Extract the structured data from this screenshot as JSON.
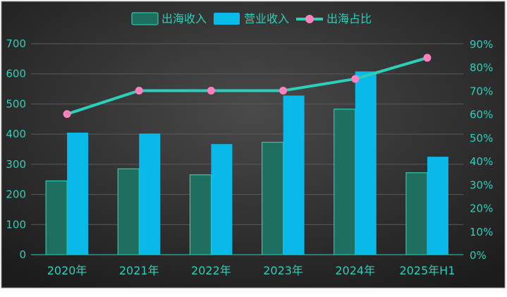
{
  "chart_data": {
    "type": "bar",
    "categories": [
      "2020年",
      "2021年",
      "2022年",
      "2023年",
      "2024年",
      "2025年H1"
    ],
    "series": [
      {
        "name": "出海收入",
        "type": "bar",
        "axis": "left",
        "values": [
          245,
          285,
          265,
          373,
          483,
          272
        ]
      },
      {
        "name": "营业收入",
        "type": "bar",
        "axis": "left",
        "values": [
          405,
          402,
          367,
          528,
          608,
          325
        ]
      },
      {
        "name": "出海占比",
        "type": "line",
        "axis": "right",
        "values": [
          60,
          70,
          70,
          70,
          75,
          84
        ]
      }
    ],
    "ylim": [
      0,
      700
    ],
    "y_ticks": [
      "0",
      "100",
      "200",
      "300",
      "400",
      "500",
      "600",
      "700"
    ],
    "y2lim": [
      0,
      90
    ],
    "y2_ticks": [
      "0%",
      "10%",
      "20%",
      "30%",
      "40%",
      "50%",
      "60%",
      "70%",
      "80%",
      "90%"
    ],
    "legend_position": "top-center",
    "grid": true,
    "colors": {
      "export_revenue": "#1f6f60",
      "export_revenue_border": "#2ee0c0",
      "total_revenue": "#08b9ea",
      "line": "#2ccfb9",
      "marker": "#ff7fbf",
      "text": "#2ccfb9",
      "grid": "#5a5a5a",
      "background": "#262626"
    }
  }
}
